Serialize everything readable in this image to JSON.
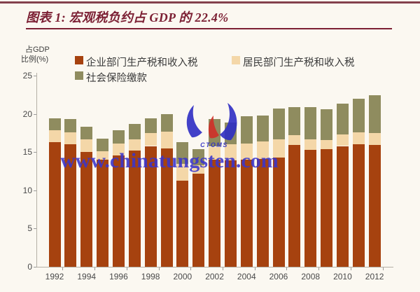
{
  "page": {
    "heading": "图表 1: 宏观税负约占 GDP 的 22.4%"
  },
  "watermark": {
    "text": "www.chinatungsten.com",
    "logo_text": "CTOMS",
    "color": "#3a35cc"
  },
  "chart_data": {
    "type": "bar",
    "stacked": true,
    "title": "图表 1: 宏观税负约占 GDP 的 22.4%",
    "ylabel_lines": [
      "占GDP",
      "比例(%)"
    ],
    "ylim": [
      0,
      25
    ],
    "y_ticks": [
      0,
      5,
      10,
      15,
      20,
      25
    ],
    "grid": false,
    "legend_position": "top",
    "categories": [
      1992,
      1993,
      1994,
      1995,
      1996,
      1997,
      1998,
      1999,
      2000,
      2001,
      2002,
      2003,
      2004,
      2005,
      2006,
      2007,
      2008,
      2009,
      2010,
      2011,
      2012
    ],
    "x_tick_labels": [
      "1992",
      "1994",
      "1996",
      "1998",
      "2000",
      "2002",
      "2004",
      "2006",
      "2008",
      "2010",
      "2012"
    ],
    "series": [
      {
        "name": "企业部门生产税和收入税",
        "color": "#A6420F",
        "values": [
          16.3,
          16.0,
          15.0,
          14.0,
          14.6,
          15.2,
          15.8,
          15.5,
          11.3,
          12.2,
          14.0,
          13.9,
          14.0,
          14.1,
          14.3,
          15.9,
          15.3,
          15.4,
          15.8,
          16.0,
          15.9
        ]
      },
      {
        "name": "居民部门生产税和收入税",
        "color": "#F4D7A8",
        "values": [
          1.6,
          1.6,
          1.7,
          1.1,
          1.5,
          1.5,
          1.7,
          2.2,
          2.2,
          1.1,
          1.7,
          2.1,
          2.1,
          2.3,
          2.4,
          1.3,
          1.4,
          1.2,
          1.5,
          1.6,
          1.6
        ]
      },
      {
        "name": "社会保险缴款",
        "color": "#8F8C5F",
        "values": [
          1.5,
          1.7,
          1.6,
          1.7,
          1.8,
          2.0,
          1.9,
          2.3,
          2.8,
          2.1,
          3.6,
          2.9,
          3.6,
          3.4,
          4.0,
          3.7,
          4.2,
          4.0,
          4.0,
          4.4,
          4.9
        ]
      }
    ],
    "totals": [
      19.4,
      19.3,
      18.3,
      16.8,
      17.9,
      18.7,
      19.4,
      20.0,
      16.3,
      15.4,
      19.3,
      18.9,
      19.7,
      19.8,
      20.7,
      20.9,
      20.9,
      20.6,
      21.3,
      22.0,
      22.4
    ]
  }
}
